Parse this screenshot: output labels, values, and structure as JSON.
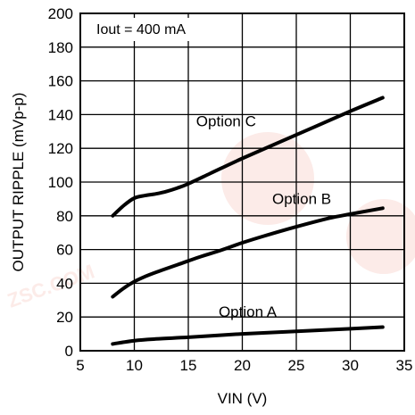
{
  "chart_data": {
    "type": "line",
    "xlabel": "VIN (V)",
    "ylabel": "OUTPUT RIPPLE (mVp-p)",
    "annotation": "Iout = 400 mA",
    "xlim": [
      5,
      35
    ],
    "ylim": [
      0,
      200
    ],
    "xticks": [
      5,
      10,
      15,
      20,
      25,
      30,
      35
    ],
    "yticks": [
      0,
      20,
      40,
      60,
      80,
      100,
      120,
      140,
      160,
      180,
      200
    ],
    "grid": true,
    "watermark": "ZSC.COM",
    "series": [
      {
        "name": "Option C",
        "x": [
          8,
          9,
          10,
          11,
          12,
          13,
          14,
          15,
          17,
          20,
          25,
          30,
          33
        ],
        "y": [
          80,
          86,
          90.5,
          92,
          93,
          94.5,
          96.5,
          99,
          105,
          114,
          128,
          142,
          150
        ]
      },
      {
        "name": "Option B",
        "x": [
          8,
          9,
          10,
          11,
          12,
          14,
          16,
          18,
          20,
          22,
          25,
          28,
          30,
          33
        ],
        "y": [
          32,
          37,
          41,
          44,
          46.5,
          51,
          55.5,
          59.5,
          64,
          68,
          73.5,
          78.5,
          81,
          84.5
        ]
      },
      {
        "name": "Option A",
        "x": [
          8,
          10,
          12,
          15,
          20,
          25,
          30,
          33
        ],
        "y": [
          4,
          6,
          7,
          8,
          10,
          11.5,
          13,
          14
        ]
      }
    ]
  }
}
